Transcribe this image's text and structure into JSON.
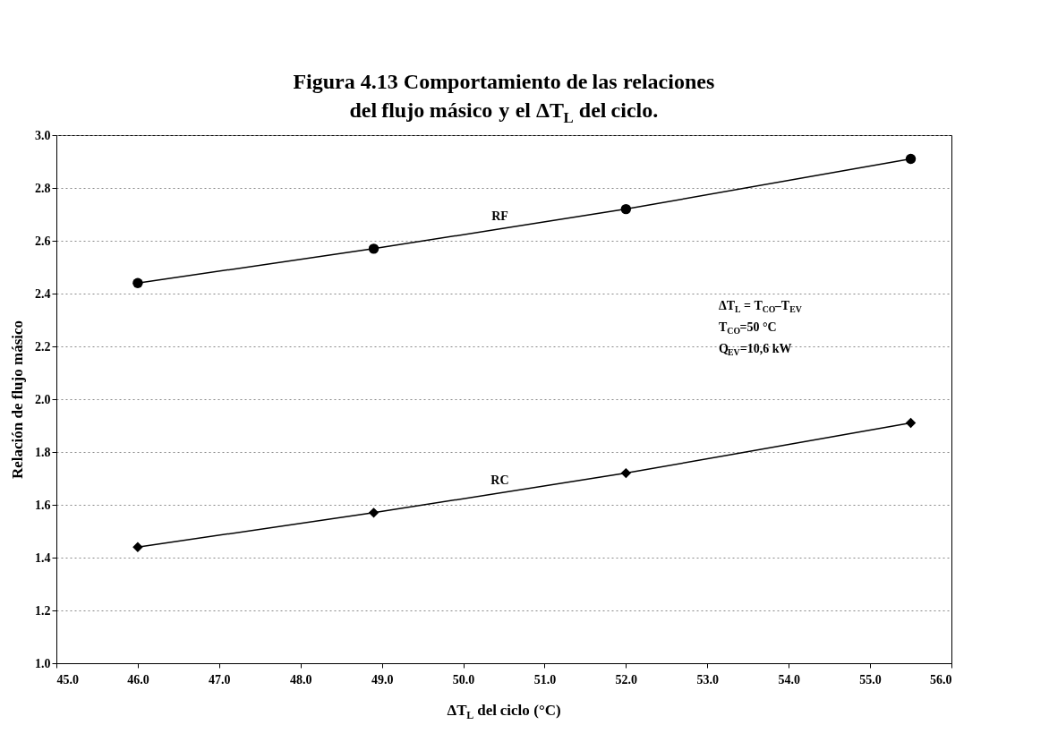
{
  "chart_data": {
    "type": "line",
    "title": "Figura 4.13 Comportamiento de las relaciones del flujo másico y el ΔT$_{L}$ del ciclo.",
    "xlabel": "ΔT$_{L}$ del ciclo (°C)",
    "ylabel": "Relación de flujo másico",
    "x": [
      46,
      48.9,
      52,
      55.5
    ],
    "series": [
      {
        "name": "RF",
        "color": "#000000",
        "marker": "circle",
        "values": [
          2.44,
          2.57,
          2.72,
          2.91
        ]
      },
      {
        "name": "RC",
        "color": "#000000",
        "marker": "diamond",
        "values": [
          1.44,
          1.57,
          1.72,
          1.91
        ]
      }
    ],
    "xlim": [
      45,
      56
    ],
    "ylim": [
      1.0,
      3.0
    ],
    "xticks": [
      {
        "value": 45,
        "label": "45.0"
      },
      {
        "value": 46,
        "label": "46.0"
      },
      {
        "value": 47,
        "label": "47.0"
      },
      {
        "value": 48,
        "label": "48.0"
      },
      {
        "value": 49,
        "label": "49.0"
      },
      {
        "value": 50,
        "label": "50.0"
      },
      {
        "value": 51,
        "label": "51.0"
      },
      {
        "value": 52,
        "label": "52.0"
      },
      {
        "value": 53,
        "label": "53.0"
      },
      {
        "value": 54,
        "label": "54.0"
      },
      {
        "value": 55,
        "label": "55.0"
      },
      {
        "value": 56,
        "label": "56.0"
      }
    ],
    "yticks": [
      {
        "value": 1,
        "label": "1.0"
      },
      {
        "value": 1.2,
        "label": "1.2"
      },
      {
        "value": 1.4,
        "label": "1.4"
      },
      {
        "value": 1.6,
        "label": "1.6"
      },
      {
        "value": 1.8,
        "label": "1.8"
      },
      {
        "value": 2,
        "label": "2.0"
      },
      {
        "value": 2.2,
        "label": "2.2"
      },
      {
        "value": 2.4,
        "label": "2.4"
      },
      {
        "value": 2.6,
        "label": "2.6"
      },
      {
        "value": 2.8,
        "label": "2.8"
      },
      {
        "value": 3,
        "label": "3.0"
      }
    ],
    "annotations": [
      "ΔT$_{L}$ = T$_{CO}$–T$_{EV}$",
      "T$_{CO}$=50 °C",
      "Q$_{EV}$=10,6 kW"
    ],
    "grid": "y",
    "legend": false,
    "line_style": "solid"
  }
}
